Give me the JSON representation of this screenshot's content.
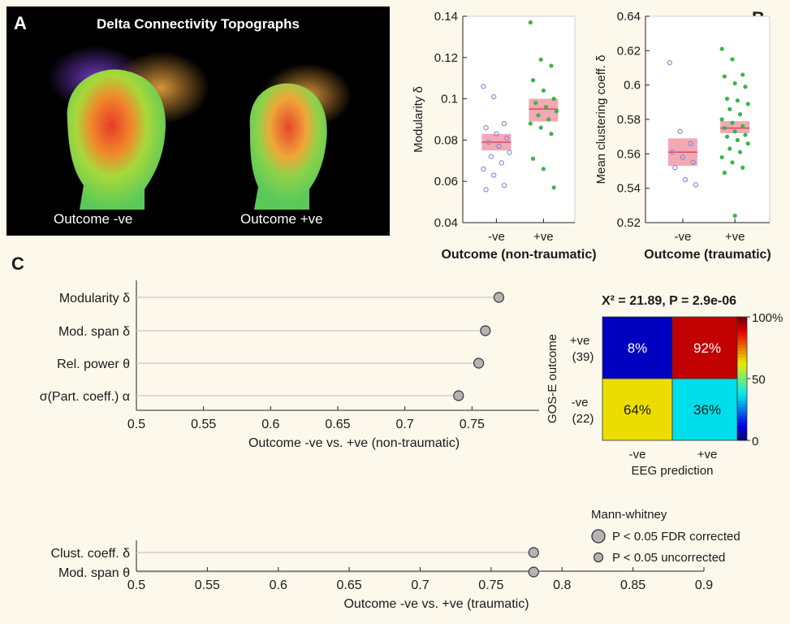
{
  "panel_labels": {
    "a": "A",
    "b": "B",
    "c": "C"
  },
  "topographs": {
    "title": "Delta Connectivity Topographs",
    "caption_left": "Outcome -ve",
    "caption_right": "Outcome +ve"
  },
  "colors": {
    "neg_points": "#8a8ae0",
    "pos_points": "#3bb54a",
    "box_fill": "#f19aa6",
    "box_line": "#e0475c",
    "lollipop_marker": "#b4b4b4",
    "lollipop_line": "#c8c8c8"
  },
  "chart_data": [
    {
      "type": "scatter",
      "id": "modularity",
      "ylabel": "Modularity δ",
      "xlabel": "Outcome (non-traumatic)",
      "categories": [
        "-ve",
        "+ve"
      ],
      "ylim": [
        0.04,
        0.14
      ],
      "yticks": [
        "0.04",
        "0.06",
        "0.08",
        "0.1",
        "0.12",
        "0.14"
      ],
      "series": [
        {
          "values": [
            0.106,
            0.101,
            0.088,
            0.086,
            0.083,
            0.081,
            0.079,
            0.077,
            0.074,
            0.072,
            0.069,
            0.066,
            0.063,
            0.058,
            0.056
          ]
        },
        {
          "values": [
            0.137,
            0.119,
            0.116,
            0.109,
            0.104,
            0.1,
            0.098,
            0.096,
            0.094,
            0.092,
            0.09,
            0.088,
            0.086,
            0.083,
            0.071,
            0.066,
            0.057
          ]
        }
      ],
      "summary": [
        {
          "mean": 0.079,
          "low": 0.075,
          "high": 0.083
        },
        {
          "mean": 0.095,
          "low": 0.089,
          "high": 0.1
        }
      ]
    },
    {
      "type": "scatter",
      "id": "clustering",
      "ylabel": "Mean clustering coeff. δ",
      "xlabel": "Outcome (traumatic)",
      "categories": [
        "-ve",
        "+ve"
      ],
      "ylim": [
        0.52,
        0.64
      ],
      "yticks": [
        "0.52",
        "0.54",
        "0.56",
        "0.58",
        "0.6",
        "0.62",
        "0.64"
      ],
      "series": [
        {
          "values": [
            0.613,
            0.573,
            0.566,
            0.561,
            0.558,
            0.555,
            0.552,
            0.545,
            0.542
          ]
        },
        {
          "values": [
            0.621,
            0.615,
            0.606,
            0.605,
            0.601,
            0.599,
            0.592,
            0.591,
            0.589,
            0.586,
            0.583,
            0.58,
            0.578,
            0.576,
            0.575,
            0.573,
            0.571,
            0.57,
            0.568,
            0.566,
            0.563,
            0.561,
            0.558,
            0.555,
            0.552,
            0.549,
            0.524
          ]
        }
      ],
      "summary": [
        {
          "mean": 0.561,
          "low": 0.553,
          "high": 0.569
        },
        {
          "mean": 0.575,
          "low": 0.572,
          "high": 0.579
        }
      ]
    },
    {
      "type": "scatter",
      "id": "lollipop-non-traumatic",
      "xlabel": "Outcome -ve vs. +ve (non-traumatic)",
      "xlim": [
        0.5,
        0.8
      ],
      "xticks": [
        "0.5",
        "0.55",
        "0.6",
        "0.65",
        "0.7",
        "0.75"
      ],
      "categories": [
        "Modularity δ",
        "Mod. span δ",
        "Rel. power θ",
        "σ(Part. coeff.) α"
      ],
      "values": [
        0.77,
        0.76,
        0.755,
        0.74
      ]
    },
    {
      "type": "heatmap",
      "id": "confusion",
      "title": "X² = 21.89, P = 2.9e-06",
      "ylabel": "GOS-E outcome",
      "xlabel": "EEG prediction",
      "row_labels": [
        "+ve (39)",
        "-ve (22)"
      ],
      "col_labels": [
        "-ve",
        "+ve"
      ],
      "values": [
        [
          8,
          92
        ],
        [
          64,
          36
        ]
      ],
      "cell_text": [
        [
          "8%",
          "92%"
        ],
        [
          "64%",
          "36%"
        ]
      ],
      "colorbar_ticks": [
        "0",
        "50",
        "100%"
      ]
    },
    {
      "type": "scatter",
      "id": "lollipop-traumatic",
      "xlabel": "Outcome -ve vs. +ve (traumatic)",
      "xlim": [
        0.5,
        0.9
      ],
      "xticks": [
        "0.5",
        "0.55",
        "0.6",
        "0.65",
        "0.7",
        "0.75",
        "0.8",
        "0.85",
        "0.9"
      ],
      "categories": [
        "Clust. coeff. δ",
        "Mod. span θ"
      ],
      "values": [
        0.78,
        0.78
      ],
      "legend": {
        "title": "Mann-whitney",
        "entries": [
          "P < 0.05 FDR corrected",
          "P < 0.05 uncorrected"
        ]
      }
    }
  ]
}
